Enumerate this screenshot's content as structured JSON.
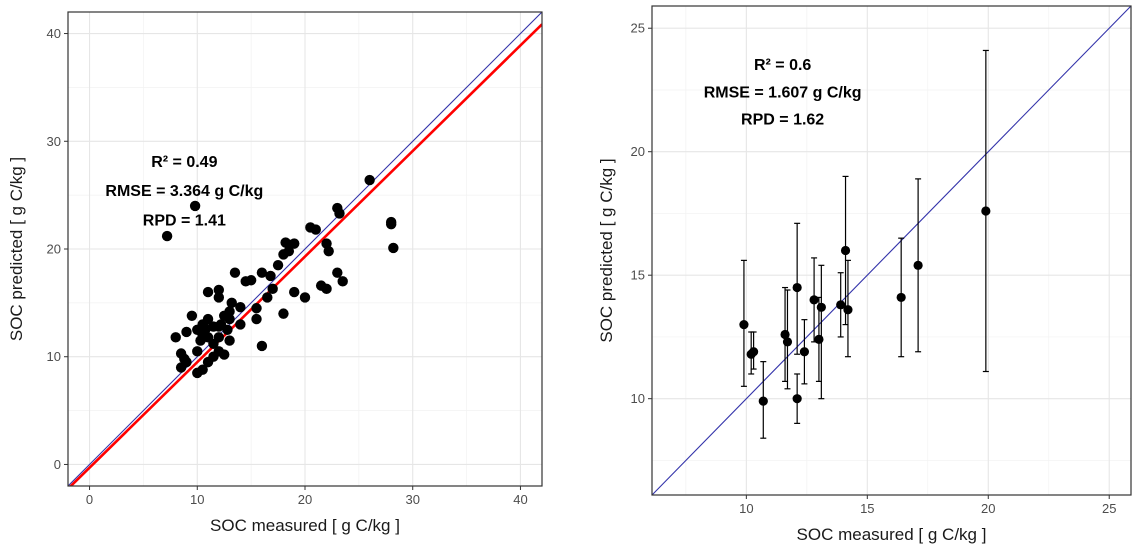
{
  "chart_data": [
    {
      "type": "scatter",
      "xlabel": "SOC measured [ g C/kg ]",
      "ylabel": "SOC predicted [ g C/kg ]",
      "xlim": [
        -2,
        42
      ],
      "ylim": [
        -2,
        42
      ],
      "x_ticks": [
        0,
        10,
        20,
        30,
        40
      ],
      "y_ticks": [
        0,
        10,
        20,
        30,
        40
      ],
      "grid": true,
      "reference_line": {
        "name": "1:1",
        "color": "#3333aa",
        "slope": 1,
        "intercept": 0
      },
      "regression_line": {
        "color": "#ff0000",
        "slope": 0.98,
        "intercept": -0.3
      },
      "annotations": [
        "R² = 0.49",
        "RMSE = 3.364 g C/kg",
        "RPD = 1.41"
      ],
      "annotation_pos": [
        {
          "x": 8.8,
          "y": 27.6
        },
        {
          "x": 8.8,
          "y": 24.9
        },
        {
          "x": 8.8,
          "y": 22.2
        }
      ],
      "point_color": "#000000",
      "points": [
        [
          7.2,
          21.2
        ],
        [
          9.8,
          24.0
        ],
        [
          26.0,
          26.4
        ],
        [
          23.0,
          23.8
        ],
        [
          23.2,
          23.3
        ],
        [
          28.0,
          22.3
        ],
        [
          28.0,
          22.5
        ],
        [
          28.2,
          20.1
        ],
        [
          18.2,
          20.6
        ],
        [
          18.5,
          20.4
        ],
        [
          18.0,
          19.5
        ],
        [
          18.5,
          19.8
        ],
        [
          19.0,
          20.5
        ],
        [
          22.0,
          20.5
        ],
        [
          22.2,
          19.8
        ],
        [
          21.0,
          21.8
        ],
        [
          20.5,
          22.0
        ],
        [
          23.0,
          17.8
        ],
        [
          23.5,
          17.0
        ],
        [
          22.0,
          16.3
        ],
        [
          21.5,
          16.6
        ],
        [
          19.0,
          16.0
        ],
        [
          20.0,
          15.5
        ],
        [
          17.0,
          16.3
        ],
        [
          16.8,
          17.5
        ],
        [
          17.5,
          18.5
        ],
        [
          16.0,
          17.8
        ],
        [
          15.0,
          17.1
        ],
        [
          14.5,
          17.0
        ],
        [
          13.5,
          17.8
        ],
        [
          12.0,
          16.2
        ],
        [
          11.0,
          16.0
        ],
        [
          12.0,
          15.5
        ],
        [
          13.2,
          15.0
        ],
        [
          14.0,
          14.6
        ],
        [
          15.5,
          14.5
        ],
        [
          15.5,
          13.5
        ],
        [
          16.5,
          15.5
        ],
        [
          18.0,
          14.0
        ],
        [
          16.0,
          11.0
        ],
        [
          13.0,
          14.2
        ],
        [
          12.5,
          13.8
        ],
        [
          13.0,
          13.5
        ],
        [
          12.2,
          13.0
        ],
        [
          11.5,
          12.8
        ],
        [
          11.0,
          13.5
        ],
        [
          10.5,
          13.0
        ],
        [
          10.0,
          12.5
        ],
        [
          9.5,
          13.8
        ],
        [
          9.0,
          12.3
        ],
        [
          8.0,
          11.8
        ],
        [
          8.5,
          10.3
        ],
        [
          9.0,
          9.5
        ],
        [
          8.5,
          9.0
        ],
        [
          8.8,
          9.8
        ],
        [
          10.0,
          8.5
        ],
        [
          10.5,
          8.8
        ],
        [
          11.0,
          9.5
        ],
        [
          11.5,
          10.0
        ],
        [
          12.0,
          10.5
        ],
        [
          12.5,
          10.2
        ],
        [
          13.0,
          11.5
        ],
        [
          12.0,
          11.8
        ],
        [
          11.5,
          11.2
        ],
        [
          11.0,
          11.8
        ],
        [
          10.5,
          12.0
        ],
        [
          10.0,
          10.5
        ],
        [
          10.3,
          11.5
        ],
        [
          12.8,
          12.5
        ],
        [
          14.0,
          13.0
        ],
        [
          12.0,
          12.8
        ],
        [
          10.8,
          12.6
        ]
      ]
    },
    {
      "type": "scatter",
      "xlabel": "SOC measured [ g C/kg ]",
      "ylabel": "SOC predicted [ g C/kg ]",
      "xlim": [
        6.1,
        25.9
      ],
      "ylim": [
        6.1,
        25.9
      ],
      "x_ticks": [
        10,
        15,
        20,
        25
      ],
      "y_ticks": [
        10,
        15,
        20,
        25
      ],
      "grid": true,
      "reference_line": {
        "name": "1:1",
        "color": "#3333aa",
        "slope": 1,
        "intercept": 0
      },
      "annotations": [
        "R² = 0.6",
        "RMSE = 1.607 g C/kg",
        "RPD = 1.62"
      ],
      "annotation_pos": [
        {
          "x": 11.5,
          "y": 23.3
        },
        {
          "x": 11.5,
          "y": 22.2
        },
        {
          "x": 11.5,
          "y": 21.1
        }
      ],
      "point_color": "#000000",
      "points_with_error": [
        {
          "x": 9.9,
          "y": 13.0,
          "ymin": 10.5,
          "ymax": 15.6
        },
        {
          "x": 10.2,
          "y": 11.8,
          "ymin": 11.0,
          "ymax": 12.7
        },
        {
          "x": 10.3,
          "y": 11.9,
          "ymin": 11.2,
          "ymax": 12.7
        },
        {
          "x": 10.7,
          "y": 9.9,
          "ymin": 8.4,
          "ymax": 11.5
        },
        {
          "x": 11.6,
          "y": 12.6,
          "ymin": 10.7,
          "ymax": 14.5
        },
        {
          "x": 11.7,
          "y": 12.3,
          "ymin": 10.4,
          "ymax": 14.4
        },
        {
          "x": 12.1,
          "y": 14.5,
          "ymin": 11.8,
          "ymax": 17.1
        },
        {
          "x": 12.1,
          "y": 10.0,
          "ymin": 9.0,
          "ymax": 11.0
        },
        {
          "x": 12.4,
          "y": 11.9,
          "ymin": 10.6,
          "ymax": 13.2
        },
        {
          "x": 12.8,
          "y": 14.0,
          "ymin": 12.3,
          "ymax": 15.7
        },
        {
          "x": 13.0,
          "y": 12.4,
          "ymin": 10.7,
          "ymax": 14.1
        },
        {
          "x": 13.1,
          "y": 13.7,
          "ymin": 10.0,
          "ymax": 15.4
        },
        {
          "x": 13.9,
          "y": 13.8,
          "ymin": 12.5,
          "ymax": 15.1
        },
        {
          "x": 14.1,
          "y": 16.0,
          "ymin": 13.0,
          "ymax": 19.0
        },
        {
          "x": 14.2,
          "y": 13.6,
          "ymin": 11.7,
          "ymax": 15.6
        },
        {
          "x": 16.4,
          "y": 14.1,
          "ymin": 11.7,
          "ymax": 16.5
        },
        {
          "x": 17.1,
          "y": 15.4,
          "ymin": 11.9,
          "ymax": 18.9
        },
        {
          "x": 19.9,
          "y": 17.6,
          "ymin": 11.1,
          "ymax": 24.1
        }
      ]
    }
  ]
}
